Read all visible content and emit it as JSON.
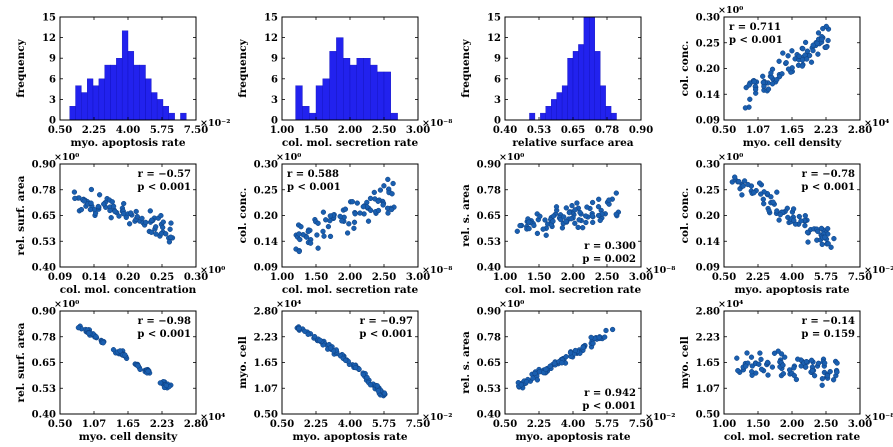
{
  "colors": {
    "hist_fill": "#2222ee",
    "hist_stroke": "#1111bb",
    "point_fill": "#1a5fb0",
    "point_stroke": "#0d3f80"
  },
  "chart_data": [
    {
      "id": "p1",
      "type": "bar",
      "xlabel": "myo. apoptosis rate",
      "ylabel": "frequency",
      "x_multiplier": "×10⁻²",
      "xlim": [
        0.5,
        7.5
      ],
      "ylim": [
        0,
        15
      ],
      "xticks": [
        "0.50",
        "2.25",
        "4.00",
        "5.75",
        "7.50"
      ],
      "xtick_values": [
        0.5,
        2.25,
        4.0,
        5.75,
        7.5
      ],
      "yticks": [
        "0",
        "3",
        "6",
        "9",
        "12",
        "15"
      ],
      "ytick_values": [
        0,
        3,
        6,
        9,
        12,
        15
      ],
      "bins": [
        1.0,
        1.3,
        1.6,
        1.9,
        2.2,
        2.5,
        2.8,
        3.1,
        3.4,
        3.7,
        4.0,
        4.3,
        4.6,
        4.9,
        5.2,
        5.5,
        5.8,
        6.1,
        6.4,
        6.7
      ],
      "bin_width": 0.3,
      "values": [
        2,
        5,
        4,
        6,
        5,
        6,
        8,
        8,
        9,
        13,
        10,
        8,
        8,
        6,
        4,
        3,
        2,
        1,
        0,
        1
      ]
    },
    {
      "id": "p2",
      "type": "bar",
      "xlabel": "col. mol. secretion rate",
      "ylabel": "frequency",
      "x_multiplier": "×10⁻⁸",
      "xlim": [
        1.0,
        3.0
      ],
      "ylim": [
        0,
        15
      ],
      "xticks": [
        "1.00",
        "1.50",
        "2.00",
        "2.50",
        "3.00"
      ],
      "xtick_values": [
        1.0,
        1.5,
        2.0,
        2.5,
        3.0
      ],
      "yticks": [
        "0",
        "3",
        "6",
        "9",
        "12",
        "15"
      ],
      "ytick_values": [
        0,
        3,
        6,
        9,
        12,
        15
      ],
      "bins": [
        1.2,
        1.3,
        1.4,
        1.5,
        1.6,
        1.7,
        1.8,
        1.9,
        2.0,
        2.1,
        2.2,
        2.3,
        2.4,
        2.5,
        2.6,
        2.7
      ],
      "bin_width": 0.1,
      "values": [
        5,
        2,
        1,
        5,
        6,
        10,
        12,
        9,
        8,
        9,
        9,
        8,
        7,
        7,
        1,
        0
      ]
    },
    {
      "id": "p3",
      "type": "bar",
      "xlabel": "relative surface area",
      "ylabel": "frequency",
      "x_multiplier": "",
      "xlim": [
        0.4,
        0.9
      ],
      "ylim": [
        0,
        15
      ],
      "xticks": [
        "0.40",
        "0.53",
        "0.65",
        "0.78",
        "0.90"
      ],
      "xtick_values": [
        0.4,
        0.525,
        0.65,
        0.775,
        0.9
      ],
      "yticks": [
        "0",
        "3",
        "6",
        "9",
        "12",
        "15"
      ],
      "ytick_values": [
        0,
        3,
        6,
        9,
        12,
        15
      ],
      "bins": [
        0.49,
        0.51,
        0.53,
        0.55,
        0.57,
        0.59,
        0.61,
        0.63,
        0.65,
        0.67,
        0.69,
        0.71,
        0.73,
        0.75,
        0.77,
        0.79
      ],
      "bin_width": 0.02,
      "values": [
        1,
        0,
        1,
        2,
        3,
        4,
        5,
        9,
        10,
        11,
        15,
        15,
        10,
        5,
        2,
        1
      ]
    },
    {
      "id": "p4",
      "type": "scatter",
      "xlabel": "myo. cell density",
      "ylabel": "col. conc.",
      "x_multiplier": "×10⁴",
      "y_multiplier": "×10⁰",
      "xlim": [
        0.5,
        2.8
      ],
      "ylim": [
        0.09,
        0.3
      ],
      "xticks": [
        "0.50",
        "1.07",
        "1.65",
        "2.23",
        "2.80"
      ],
      "xtick_values": [
        0.5,
        1.075,
        1.65,
        2.225,
        2.8
      ],
      "yticks": [
        "0.09",
        "0.14",
        "0.20",
        "0.25",
        "0.30"
      ],
      "ytick_values": [
        0.09,
        0.1425,
        0.195,
        0.2475,
        0.3
      ],
      "annotation": [
        "r = 0.711",
        "p < 0.001"
      ],
      "annotation_pos": "top-left",
      "trend": {
        "x0": 0.85,
        "y0": 0.14,
        "x1": 2.3,
        "y1": 0.265,
        "n": 85,
        "spread": 0.028,
        "seed": 4
      }
    },
    {
      "id": "p5",
      "type": "scatter",
      "xlabel": "col. mol. concentration",
      "ylabel": "rel. surf. area",
      "x_multiplier": "×10⁰",
      "y_multiplier": "×10⁰",
      "xlim": [
        0.09,
        0.3
      ],
      "ylim": [
        0.4,
        0.9
      ],
      "xticks": [
        "0.09",
        "0.14",
        "0.20",
        "0.25",
        "0.30"
      ],
      "xtick_values": [
        0.09,
        0.1425,
        0.195,
        0.2475,
        0.3
      ],
      "yticks": [
        "0.40",
        "0.53",
        "0.65",
        "0.78",
        "0.90"
      ],
      "ytick_values": [
        0.4,
        0.525,
        0.65,
        0.775,
        0.9
      ],
      "annotation": [
        "r = −0.57",
        "p < 0.001"
      ],
      "annotation_pos": "top-right",
      "trend": {
        "x0": 0.11,
        "y0": 0.74,
        "x1": 0.265,
        "y1": 0.57,
        "n": 85,
        "spread": 0.055,
        "seed": 5
      }
    },
    {
      "id": "p6",
      "type": "scatter",
      "xlabel": "col. mol. secretion rate",
      "ylabel": "col. conc.",
      "x_multiplier": "×10⁻⁸",
      "y_multiplier": "×10⁰",
      "xlim": [
        1.0,
        3.0
      ],
      "ylim": [
        0.09,
        0.3
      ],
      "xticks": [
        "1.00",
        "1.50",
        "2.00",
        "2.50",
        "3.00"
      ],
      "xtick_values": [
        1.0,
        1.5,
        2.0,
        2.5,
        3.0
      ],
      "yticks": [
        "0.09",
        "0.14",
        "0.20",
        "0.25",
        "0.30"
      ],
      "ytick_values": [
        0.09,
        0.1425,
        0.195,
        0.2475,
        0.3
      ],
      "annotation": [
        "r = 0.588",
        "p < 0.001"
      ],
      "annotation_pos": "top-left",
      "trend": {
        "x0": 1.2,
        "y0": 0.14,
        "x1": 2.7,
        "y1": 0.245,
        "n": 85,
        "spread": 0.03,
        "seed": 6
      }
    },
    {
      "id": "p7",
      "type": "scatter",
      "xlabel": "col. mol. secretion rate",
      "ylabel": "rel. s. area",
      "x_multiplier": "×10⁻⁸",
      "y_multiplier": "×10⁰",
      "xlim": [
        1.0,
        3.0
      ],
      "ylim": [
        0.4,
        0.9
      ],
      "xticks": [
        "1.00",
        "1.50",
        "2.00",
        "2.50",
        "3.00"
      ],
      "xtick_values": [
        1.0,
        1.5,
        2.0,
        2.5,
        3.0
      ],
      "yticks": [
        "0.40",
        "0.53",
        "0.65",
        "0.78",
        "0.90"
      ],
      "ytick_values": [
        0.4,
        0.525,
        0.65,
        0.775,
        0.9
      ],
      "annotation": [
        "r = 0.300",
        "p = 0.002"
      ],
      "annotation_pos": "bottom-right",
      "trend": {
        "x0": 1.2,
        "y0": 0.6,
        "x1": 2.7,
        "y1": 0.7,
        "n": 85,
        "spread": 0.06,
        "seed": 7
      }
    },
    {
      "id": "p8",
      "type": "scatter",
      "xlabel": "myo. apoptosis rate",
      "ylabel": "col. conc.",
      "x_multiplier": "×10⁻²",
      "y_multiplier": "×10⁰",
      "xlim": [
        0.5,
        7.5
      ],
      "ylim": [
        0.09,
        0.3
      ],
      "xticks": [
        "0.50",
        "2.25",
        "4.00",
        "5.75",
        "7.50"
      ],
      "xtick_values": [
        0.5,
        2.25,
        4.0,
        5.75,
        7.5
      ],
      "yticks": [
        "0.09",
        "0.14",
        "0.20",
        "0.25",
        "0.30"
      ],
      "ytick_values": [
        0.09,
        0.1425,
        0.195,
        0.2475,
        0.3
      ],
      "annotation": [
        "r = −0.78",
        "p < 0.001"
      ],
      "annotation_pos": "top-right",
      "trend": {
        "x0": 1.1,
        "y0": 0.265,
        "x1": 6.0,
        "y1": 0.14,
        "n": 85,
        "spread": 0.022,
        "seed": 8
      }
    },
    {
      "id": "p9",
      "type": "scatter",
      "xlabel": "myo. cell density",
      "ylabel": "rel. surf. area",
      "x_multiplier": "×10⁴",
      "y_multiplier": "×10⁰",
      "xlim": [
        0.5,
        2.8
      ],
      "ylim": [
        0.4,
        0.9
      ],
      "xticks": [
        "0.50",
        "1.07",
        "1.65",
        "2.23",
        "2.80"
      ],
      "xtick_values": [
        0.5,
        1.075,
        1.65,
        2.225,
        2.8
      ],
      "yticks": [
        "0.40",
        "0.53",
        "0.65",
        "0.78",
        "0.90"
      ],
      "ytick_values": [
        0.4,
        0.525,
        0.65,
        0.775,
        0.9
      ],
      "annotation": [
        "r = −0.98",
        "p < 0.001"
      ],
      "annotation_pos": "top-right",
      "trend": {
        "x0": 0.85,
        "y0": 0.82,
        "x1": 2.35,
        "y1": 0.53,
        "n": 85,
        "spread": 0.012,
        "seed": 9,
        "curve": 0.06
      }
    },
    {
      "id": "p10",
      "type": "scatter",
      "xlabel": "myo. apoptosis rate",
      "ylabel": "myo. cell",
      "x_multiplier": "×10⁻²",
      "y_multiplier": "×10⁴",
      "xlim": [
        0.5,
        7.5
      ],
      "ylim": [
        0.5,
        2.8
      ],
      "xticks": [
        "0.50",
        "2.25",
        "4.00",
        "5.75",
        "7.50"
      ],
      "xtick_values": [
        0.5,
        2.25,
        4.0,
        5.75,
        7.5
      ],
      "yticks": [
        "0.50",
        "1.07",
        "1.65",
        "2.23",
        "2.80"
      ],
      "ytick_values": [
        0.5,
        1.075,
        1.65,
        2.225,
        2.8
      ],
      "annotation": [
        "r = −0.97",
        "p < 0.001"
      ],
      "annotation_pos": "top-right",
      "trend": {
        "x0": 1.2,
        "y0": 2.45,
        "x1": 5.8,
        "y1": 0.9,
        "n": 85,
        "spread": 0.045,
        "seed": 10,
        "curve": 0.35
      }
    },
    {
      "id": "p11",
      "type": "scatter",
      "xlabel": "myo. apoptosis rate",
      "ylabel": "rel. s. area",
      "x_multiplier": "×10⁻²",
      "y_multiplier": "×10⁰",
      "xlim": [
        0.5,
        7.5
      ],
      "ylim": [
        0.4,
        0.9
      ],
      "xticks": [
        "0.50",
        "2.25",
        "4.00",
        "5.75",
        "7.50"
      ],
      "xtick_values": [
        0.5,
        2.25,
        4.0,
        5.75,
        7.5
      ],
      "yticks": [
        "0.40",
        "0.53",
        "0.65",
        "0.78",
        "0.90"
      ],
      "ytick_values": [
        0.4,
        0.525,
        0.65,
        0.775,
        0.9
      ],
      "annotation": [
        "r = 0.942",
        "p < 0.001"
      ],
      "annotation_pos": "bottom-right",
      "trend": {
        "x0": 1.1,
        "y0": 0.53,
        "x1": 6.0,
        "y1": 0.8,
        "n": 85,
        "spread": 0.018,
        "seed": 11,
        "curve": -0.03
      }
    },
    {
      "id": "p12",
      "type": "scatter",
      "xlabel": "col. mol. secretion rate",
      "ylabel": "myo. cell",
      "x_multiplier": "×10⁻⁸",
      "y_multiplier": "×10⁴",
      "xlim": [
        1.0,
        3.0
      ],
      "ylim": [
        0.5,
        2.8
      ],
      "xticks": [
        "1.00",
        "1.50",
        "2.00",
        "2.50",
        "3.00"
      ],
      "xtick_values": [
        1.0,
        1.5,
        2.0,
        2.5,
        3.0
      ],
      "yticks": [
        "0.50",
        "1.07",
        "1.65",
        "2.23",
        "2.80"
      ],
      "ytick_values": [
        0.5,
        1.075,
        1.65,
        2.225,
        2.8
      ],
      "annotation": [
        "r = −0.14",
        "p = 0.159"
      ],
      "annotation_pos": "top-right",
      "trend": {
        "x0": 1.2,
        "y0": 1.62,
        "x1": 2.7,
        "y1": 1.42,
        "n": 85,
        "spread": 0.3,
        "seed": 12
      }
    }
  ]
}
